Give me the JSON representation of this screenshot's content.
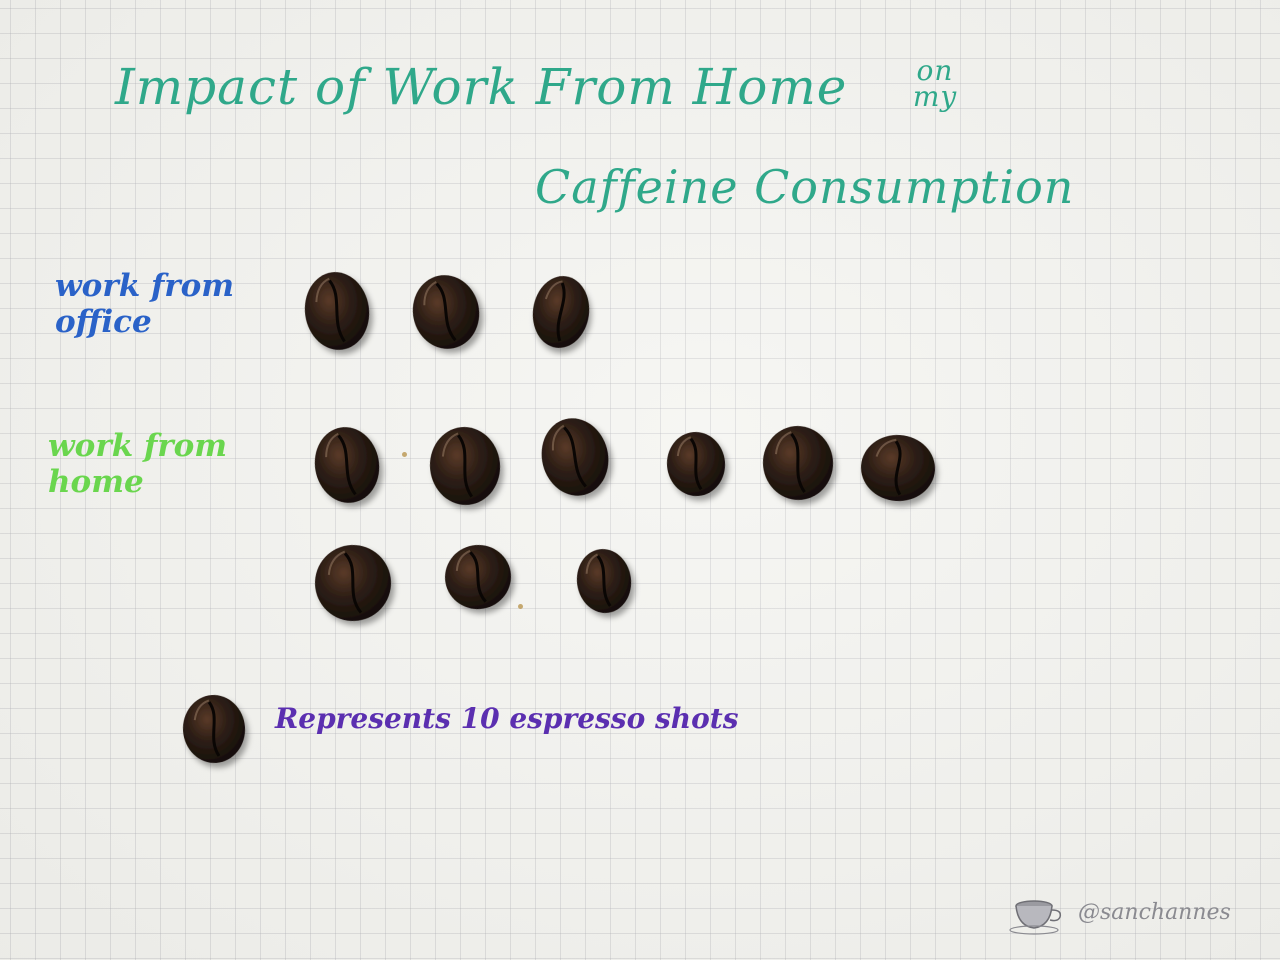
{
  "title": {
    "line1": "Impact of Work From Home",
    "on_my": "on my",
    "line2": "Caffeine Consumption"
  },
  "chart_data": {
    "type": "pictogram",
    "unit_icon": "coffee-bean-icon",
    "unit_value": 10,
    "categories": [
      "work from office",
      "work from home"
    ],
    "values": [
      30,
      90
    ],
    "icon_counts": [
      3,
      9
    ],
    "legend": "Represents 10 espresso shots"
  },
  "labels": {
    "office": "work from office",
    "home": "work from home"
  },
  "legend": {
    "text": "Represents 10 espresso shots",
    "icon": "coffee-bean-icon"
  },
  "signature": {
    "text": "@sanchannes",
    "icon": "coffee-cup-icon"
  },
  "colors": {
    "title": "#2fa88a",
    "office_label": "#2a62c8",
    "home_label": "#6ad64e",
    "legend_text": "#5b2fb0",
    "bean": "#2b1d15"
  }
}
